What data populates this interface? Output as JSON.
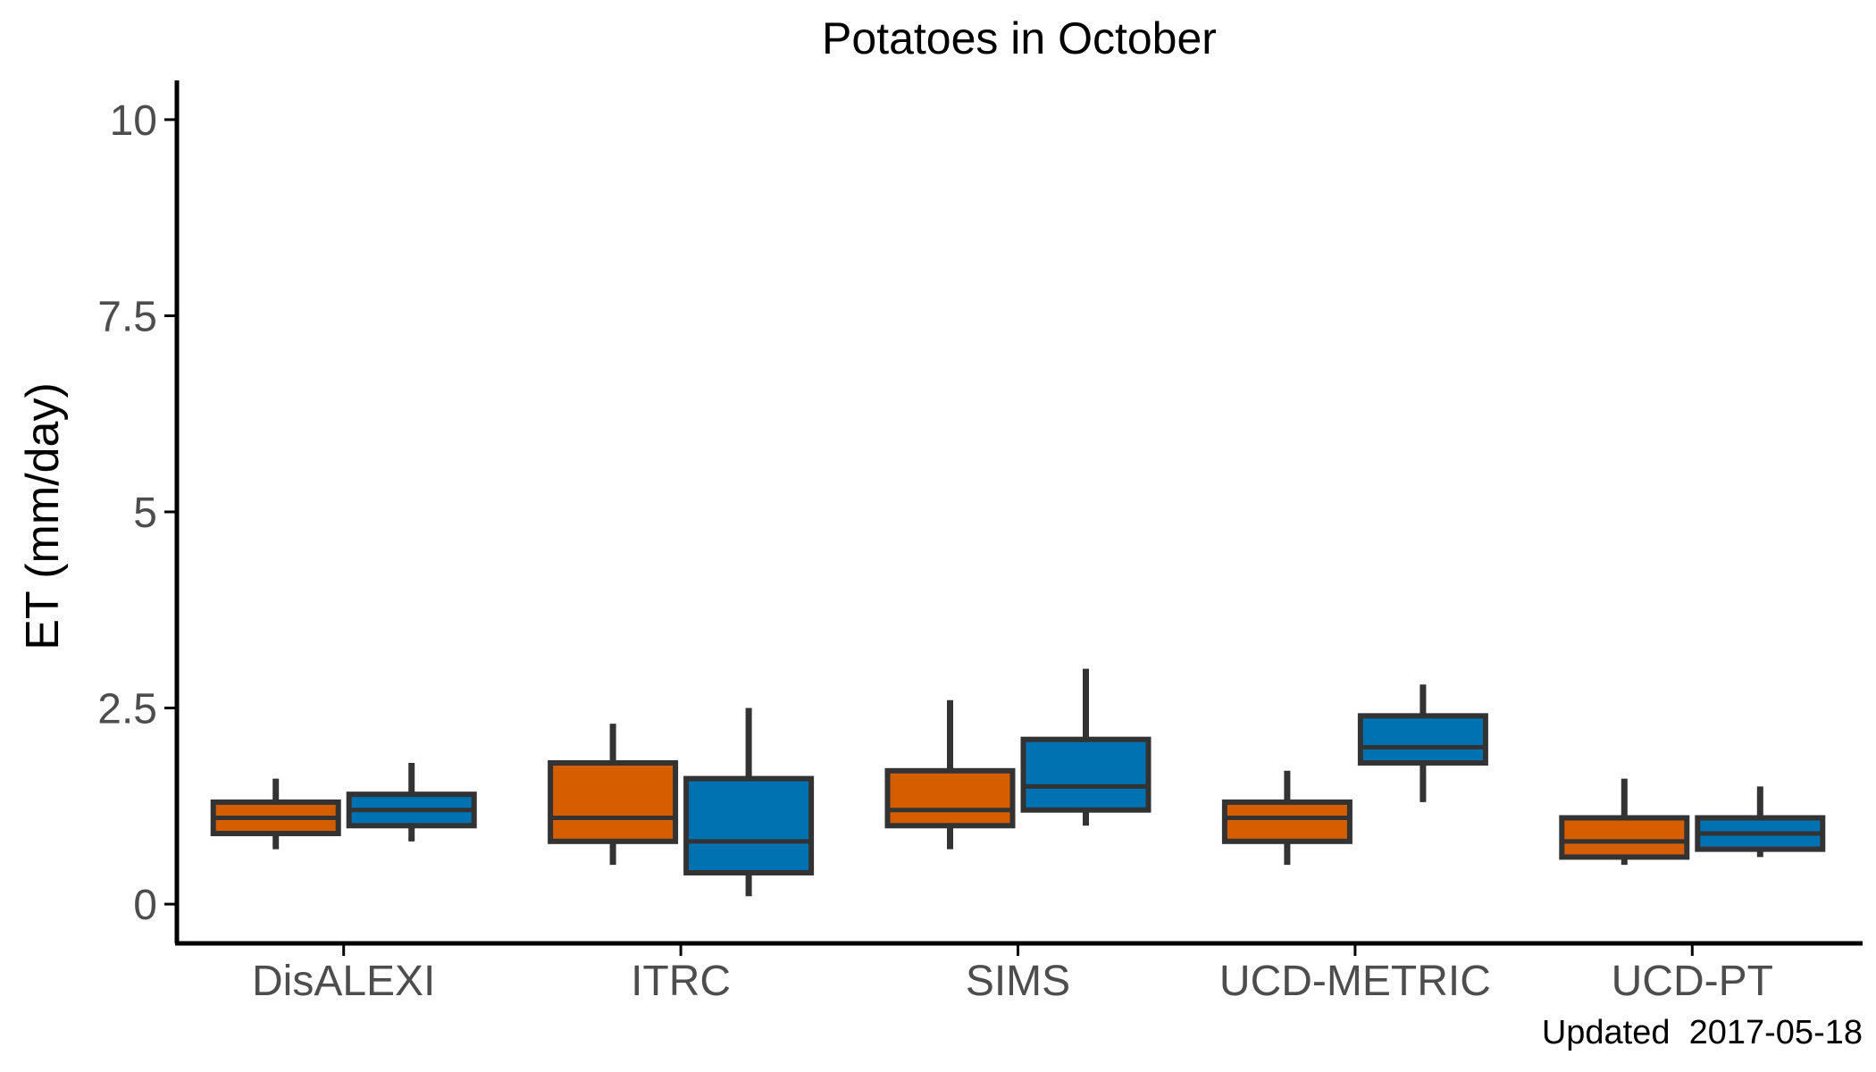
{
  "chart_data": {
    "type": "box",
    "title": "Potatoes in October",
    "xlabel": "",
    "ylabel": "ET (mm/day)",
    "ylim": [
      -0.5,
      10.5
    ],
    "yticks": [
      0,
      2.5,
      5,
      7.5,
      10
    ],
    "ytick_labels": [
      "0",
      "2.5",
      "5",
      "7.5",
      "10"
    ],
    "categories": [
      "DisALEXI",
      "ITRC",
      "SIMS",
      "UCD-METRIC",
      "UCD-PT"
    ],
    "grid": false,
    "legend": "none",
    "caption": "Updated  2017-05-18",
    "colors": {
      "orange": "#D55E00",
      "blue": "#0072B2",
      "outline": "#333333",
      "axis": "#000000"
    },
    "series": [
      {
        "color": "#D55E00",
        "boxes": [
          {
            "category": "DisALEXI",
            "min": 0.7,
            "q1": 0.9,
            "median": 1.1,
            "q3": 1.3,
            "max": 1.6
          },
          {
            "category": "ITRC",
            "min": 0.5,
            "q1": 0.8,
            "median": 1.1,
            "q3": 1.8,
            "max": 2.3
          },
          {
            "category": "SIMS",
            "min": 0.7,
            "q1": 1.0,
            "median": 1.2,
            "q3": 1.7,
            "max": 2.6
          },
          {
            "category": "UCD-METRIC",
            "min": 0.5,
            "q1": 0.8,
            "median": 1.1,
            "q3": 1.3,
            "max": 1.7
          },
          {
            "category": "UCD-PT",
            "min": 0.5,
            "q1": 0.6,
            "median": 0.8,
            "q3": 1.1,
            "max": 1.6
          }
        ]
      },
      {
        "color": "#0072B2",
        "boxes": [
          {
            "category": "DisALEXI",
            "min": 0.8,
            "q1": 1.0,
            "median": 1.2,
            "q3": 1.4,
            "max": 1.8
          },
          {
            "category": "ITRC",
            "min": 0.1,
            "q1": 0.4,
            "median": 0.8,
            "q3": 1.6,
            "max": 2.5
          },
          {
            "category": "SIMS",
            "min": 1.0,
            "q1": 1.2,
            "median": 1.5,
            "q3": 2.1,
            "max": 3.0
          },
          {
            "category": "UCD-METRIC",
            "min": 1.3,
            "q1": 1.8,
            "median": 2.0,
            "q3": 2.4,
            "max": 2.8
          },
          {
            "category": "UCD-PT",
            "min": 0.6,
            "q1": 0.7,
            "median": 0.9,
            "q3": 1.1,
            "max": 1.5
          }
        ]
      }
    ]
  }
}
